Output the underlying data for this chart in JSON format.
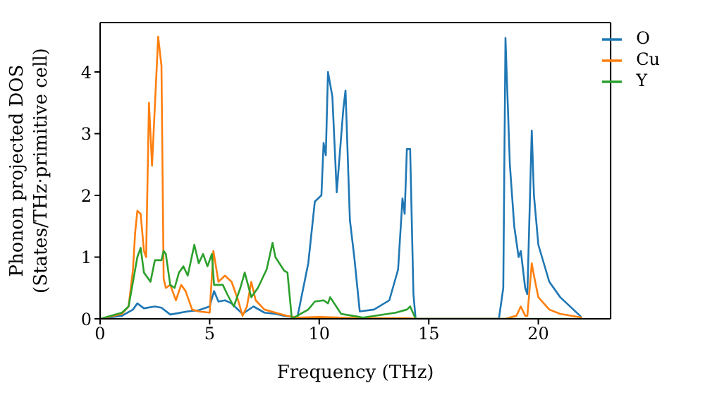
{
  "chart_data": {
    "type": "line",
    "xlabel": "Frequency (THz)",
    "ylabel": "Phonon projected DOS\n(States/THz·primitive cell)",
    "xlim": [
      0,
      23.3
    ],
    "ylim": [
      0,
      4.8
    ],
    "xticks": [
      0,
      5,
      10,
      15,
      20
    ],
    "yticks": [
      0,
      1,
      2,
      3,
      4
    ],
    "grid": false,
    "legend": "top right",
    "marker": "none",
    "line_style": "solid",
    "series": [
      {
        "name": "O",
        "color": "#1f77b4",
        "x": [
          0,
          1,
          1.5,
          1.7,
          2,
          2.5,
          2.8,
          3.2,
          4,
          4.5,
          5,
          5.2,
          5.4,
          5.7,
          6,
          6.5,
          7,
          7.5,
          8,
          8.5,
          9,
          9.5,
          9.8,
          10.1,
          10.2,
          10.3,
          10.4,
          10.6,
          10.8,
          11.1,
          11.2,
          11.4,
          11.6,
          11.85,
          12.5,
          13.2,
          13.6,
          13.8,
          13.9,
          14,
          14.15,
          14.3,
          14.4,
          18.2,
          18.4,
          18.5,
          18.7,
          18.9,
          19.1,
          19.2,
          19.4,
          19.5,
          19.7,
          19.8,
          20,
          20.5,
          21,
          21.6,
          21.9,
          22
        ],
        "values": [
          0,
          0.05,
          0.15,
          0.25,
          0.17,
          0.2,
          0.18,
          0.07,
          0.12,
          0.14,
          0.2,
          0.45,
          0.28,
          0.3,
          0.25,
          0.08,
          0.2,
          0.1,
          0.08,
          0.04,
          0.02,
          0.9,
          1.9,
          2.0,
          2.85,
          2.65,
          4.0,
          3.6,
          2.05,
          3.4,
          3.7,
          1.6,
          1.0,
          0.12,
          0.15,
          0.3,
          0.8,
          1.95,
          1.7,
          2.75,
          2.75,
          0.4,
          0,
          0,
          0.5,
          4.55,
          2.5,
          1.5,
          1.0,
          1.1,
          0.5,
          0.4,
          3.05,
          2.0,
          1.2,
          0.6,
          0.35,
          0.15,
          0.05,
          0
        ]
      },
      {
        "name": "Cu",
        "color": "#ff7f0e",
        "x": [
          0,
          1,
          1.3,
          1.5,
          1.6,
          1.7,
          1.85,
          2.0,
          2.1,
          2.23,
          2.37,
          2.65,
          2.8,
          2.9,
          3.0,
          3.2,
          3.46,
          3.7,
          3.9,
          4.2,
          4.5,
          5,
          5.17,
          5.4,
          5.7,
          6,
          6.3,
          6.5,
          6.7,
          6.9,
          7.1,
          7.5,
          8,
          8.5,
          9,
          10,
          11,
          12,
          14,
          14.5,
          18.5,
          19.0,
          19.2,
          19.4,
          19.5,
          19.7,
          19.8,
          20,
          20.5,
          21,
          22
        ],
        "values": [
          0,
          0.08,
          0.2,
          0.8,
          1.4,
          1.75,
          1.7,
          1.1,
          1.0,
          3.5,
          2.48,
          4.57,
          4.1,
          0.65,
          0.5,
          0.55,
          0.3,
          0.55,
          0.45,
          0.15,
          0.12,
          0.1,
          1.1,
          0.6,
          0.7,
          0.6,
          0.3,
          0.05,
          0.2,
          0.6,
          0.3,
          0.15,
          0.1,
          0.05,
          0.02,
          0.03,
          0.02,
          0.01,
          0.01,
          0,
          0,
          0.05,
          0.2,
          0.05,
          0.05,
          0.9,
          0.7,
          0.35,
          0.15,
          0.08,
          0.02
        ]
      },
      {
        "name": "Y",
        "color": "#2ca02c",
        "x": [
          0,
          1,
          1.3,
          1.5,
          1.7,
          1.85,
          2.0,
          2.3,
          2.5,
          2.8,
          2.9,
          3.0,
          3.2,
          3.4,
          3.6,
          3.8,
          4.0,
          4.3,
          4.5,
          4.7,
          4.9,
          5.1,
          5.2,
          5.4,
          5.6,
          5.8,
          6.1,
          6.4,
          6.6,
          6.9,
          7.2,
          7.6,
          7.87,
          8.0,
          8.4,
          8.55,
          8.75,
          9.5,
          9.8,
          10.2,
          10.4,
          10.5,
          11.0,
          11.5,
          12,
          13.5,
          14,
          14.15,
          14.4,
          22
        ],
        "values": [
          0,
          0.1,
          0.2,
          0.6,
          1.0,
          1.15,
          0.75,
          0.6,
          0.95,
          0.95,
          1.1,
          1.05,
          0.55,
          0.5,
          0.75,
          0.85,
          0.7,
          1.2,
          0.9,
          1.05,
          0.85,
          1.05,
          0.55,
          0.55,
          0.55,
          0.4,
          0.2,
          0.5,
          0.75,
          0.35,
          0.5,
          0.8,
          1.23,
          1.0,
          0.78,
          0.75,
          0,
          0.15,
          0.28,
          0.3,
          0.25,
          0.35,
          0.08,
          0.05,
          0.02,
          0.1,
          0.15,
          0.2,
          0,
          0
        ]
      }
    ]
  }
}
